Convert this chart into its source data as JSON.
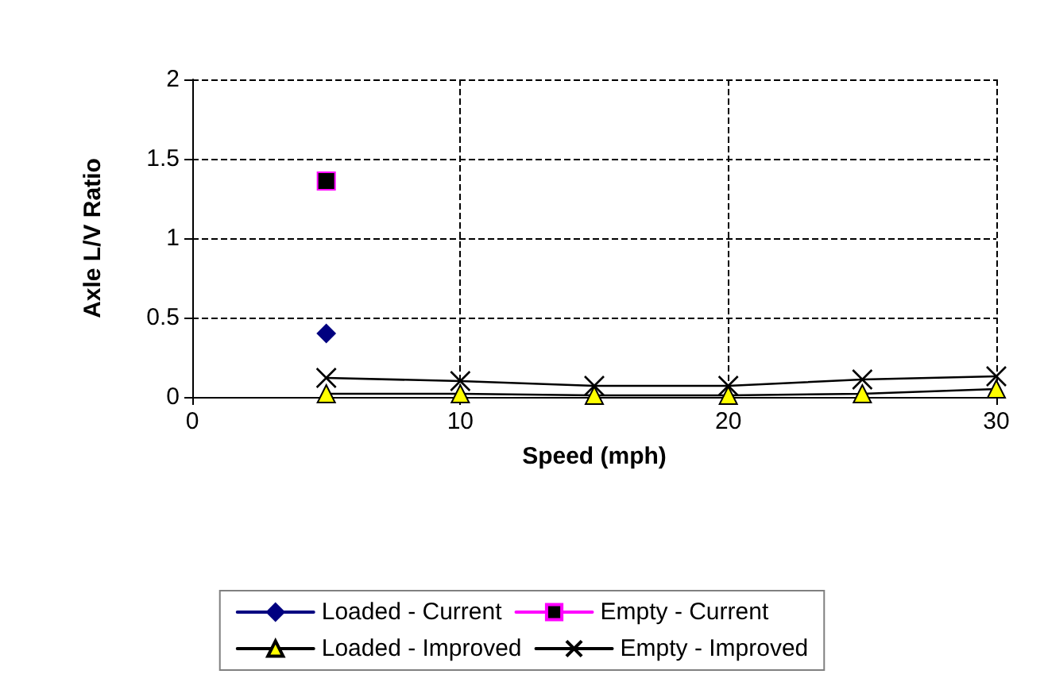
{
  "chart_data": {
    "type": "line",
    "xlabel": "Speed (mph)",
    "ylabel": "Axle L/V Ratio",
    "xlim": [
      0,
      30
    ],
    "xticks": [
      0,
      10,
      20,
      30
    ],
    "ylim": [
      0,
      2
    ],
    "yticks": [
      0,
      0.5,
      1,
      1.5,
      2
    ],
    "grid": true,
    "legend": "bottom",
    "line_style": "solid",
    "series": [
      {
        "name": "Loaded - Current",
        "color": "#000080",
        "marker": "diamond",
        "x": [
          5
        ],
        "values": [
          0.4
        ]
      },
      {
        "name": "Empty - Current",
        "color": "#000000",
        "marker": "square",
        "x": [
          5
        ],
        "values": [
          1.36
        ]
      },
      {
        "name": "Loaded - Improved",
        "color": "#ffff00",
        "marker": "triangle",
        "x": [
          5,
          10,
          15,
          20,
          25,
          30
        ],
        "values": [
          0.02,
          0.02,
          0.01,
          0.01,
          0.02,
          0.05
        ]
      },
      {
        "name": "Empty - Improved",
        "color": "#000000",
        "marker": "cross",
        "x": [
          5,
          10,
          15,
          20,
          25,
          30
        ],
        "values": [
          0.12,
          0.1,
          0.07,
          0.07,
          0.11,
          0.13
        ]
      }
    ]
  }
}
